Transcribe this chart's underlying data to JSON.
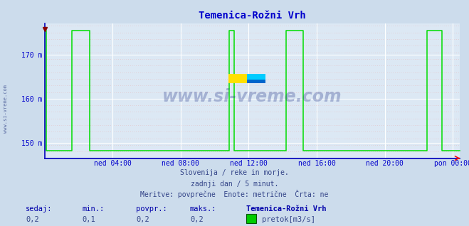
{
  "title": "Temenica-Rožni Vrh",
  "title_color": "#0000cc",
  "title_fontsize": 10,
  "bg_color": "#ccdcec",
  "plot_bg_color": "#dce8f4",
  "line_color": "#00dd00",
  "line_color_border": "#0000bb",
  "axis_color": "#0000cc",
  "grid_color_white": "#ffffff",
  "grid_color_pink": "#e8b8b8",
  "ylim": [
    146.5,
    177.0
  ],
  "yticks": [
    150,
    160,
    170
  ],
  "ytick_labels": [
    "150 m",
    "160 m",
    "170 m"
  ],
  "xtick_labels": [
    "ned 04:00",
    "ned 08:00",
    "ned 12:00",
    "ned 16:00",
    "ned 20:00",
    "pon 00:00"
  ],
  "xtick_positions": [
    4,
    8,
    12,
    16,
    20,
    24
  ],
  "xlim": [
    0,
    24.4
  ],
  "subtitle_lines": [
    "Slovenija / reke in morje.",
    "zadnji dan / 5 minut.",
    "Meritve: povprečne  Enote: metrične  Črta: ne"
  ],
  "footer_labels": [
    "sedaj:",
    "min.:",
    "povpr.:",
    "maks.:",
    "Temenica-Rožni Vrh"
  ],
  "footer_values": [
    "0,2",
    "0,1",
    "0,2",
    "0,2"
  ],
  "footer_legend_label": "pretok[m3/s]",
  "watermark": "www.si-vreme.com",
  "high_val": 175.5,
  "low_val": 148.2,
  "data_x": [
    0.0,
    0.08,
    0.08,
    1.6,
    1.6,
    2.65,
    2.65,
    10.85,
    10.85,
    11.15,
    11.15,
    14.2,
    14.2,
    15.2,
    15.2,
    22.5,
    22.5,
    23.35,
    23.35,
    24.4
  ],
  "data_y": [
    175.5,
    175.5,
    148.2,
    148.2,
    175.5,
    175.5,
    148.2,
    148.2,
    175.5,
    175.5,
    148.2,
    148.2,
    175.5,
    175.5,
    148.2,
    148.2,
    175.5,
    175.5,
    148.2,
    148.2
  ]
}
